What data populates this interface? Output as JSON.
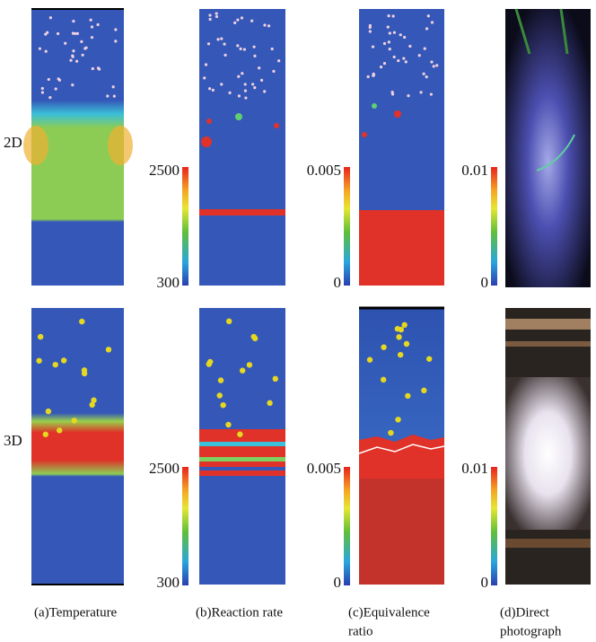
{
  "rows": [
    {
      "label": "2D",
      "colorbars": [
        {
          "max": "2500",
          "min": "300"
        },
        {
          "max": "0.005",
          "min": "0"
        },
        {
          "max": "0.01",
          "min": "0"
        }
      ]
    },
    {
      "label": "3D",
      "colorbars": [
        {
          "max": "2500",
          "min": "300"
        },
        {
          "max": "0.005",
          "min": "0"
        },
        {
          "max": "0.01",
          "min": "0"
        }
      ]
    }
  ],
  "captions": [
    {
      "lines": [
        "(a)Temperature"
      ]
    },
    {
      "lines": [
        "(b)Reaction rate"
      ]
    },
    {
      "lines": [
        "(c)Equivalence",
        "ratio"
      ]
    },
    {
      "lines": [
        "(d)Direct",
        "photograph"
      ]
    }
  ]
}
